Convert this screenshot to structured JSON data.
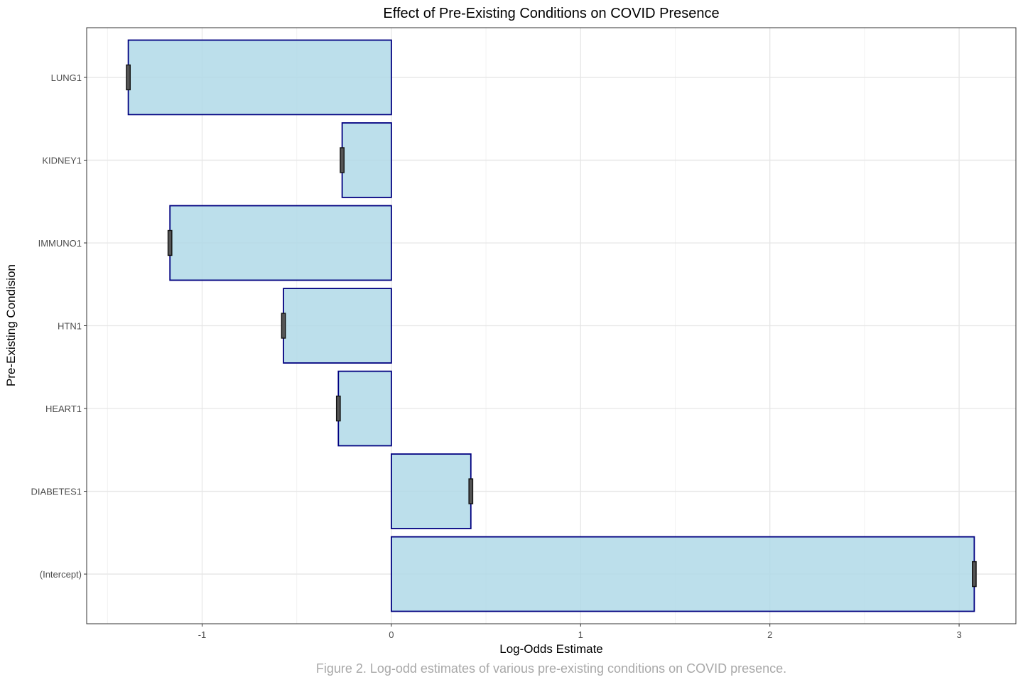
{
  "chart_data": {
    "type": "bar",
    "orientation": "horizontal",
    "title": "Effect of Pre-Existing Conditions on COVID Presence",
    "xlabel": "Log-Odds Estimate",
    "ylabel": "Pre-Existing Condision",
    "caption": "Figure 2. Log-odd estimates of various pre-existing conditions on COVID presence.",
    "categories": [
      "(Intercept)",
      "DIABETES1",
      "HEART1",
      "HTN1",
      "IMMUNO1",
      "KIDNEY1",
      "LUNG1"
    ],
    "values": [
      3.08,
      0.42,
      -0.28,
      -0.57,
      -1.17,
      -0.26,
      -1.39
    ],
    "error_halfwidth": [
      0.01,
      0.01,
      0.01,
      0.01,
      0.01,
      0.01,
      0.01
    ],
    "xlim": [
      -1.61,
      3.3
    ],
    "xticks": [
      -1,
      0,
      1,
      2,
      3
    ],
    "xtick_labels": [
      "-1",
      "0",
      "1",
      "2",
      "3"
    ],
    "grid": true,
    "legend": "none",
    "colors": {
      "bar_fill": "#add8e6",
      "bar_stroke": "#000080",
      "error_bar": "#111111",
      "grid_major": "#e6e6e6",
      "grid_minor": "#f2f2f2",
      "panel_border": "#333333"
    }
  }
}
